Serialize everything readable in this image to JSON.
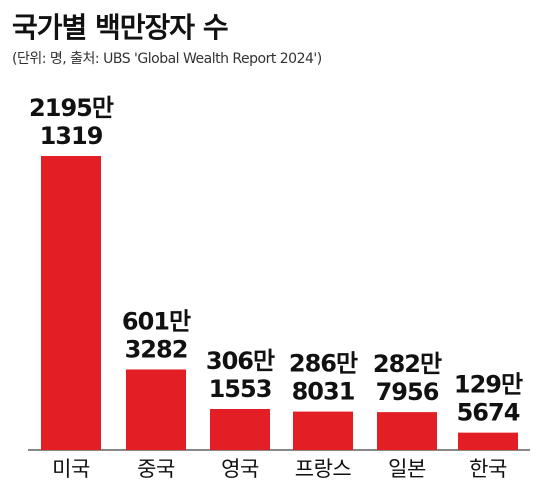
{
  "title": "국가별 백만장자 수",
  "subtitle": "(단위: 명, 출처: UBS 'Global Wealth Report 2024')",
  "colors": {
    "bar": "#e31e24",
    "text": "#111111"
  },
  "chart_data": {
    "type": "bar",
    "categories": [
      "미국",
      "중국",
      "영국",
      "프랑스",
      "일본",
      "한국"
    ],
    "values": [
      21951319,
      6013282,
      3061553,
      2868031,
      2827956,
      1295674
    ],
    "value_labels": [
      [
        "2195만",
        "1319"
      ],
      [
        "601만",
        "3282"
      ],
      [
        "306만",
        "1553"
      ],
      [
        "286만",
        "8031"
      ],
      [
        "282만",
        "7956"
      ],
      [
        "129만",
        "5674"
      ]
    ],
    "title": "국가별 백만장자 수",
    "xlabel": "",
    "ylabel": "",
    "ylim": [
      0,
      21951319
    ],
    "grid": false,
    "legend": "none"
  }
}
